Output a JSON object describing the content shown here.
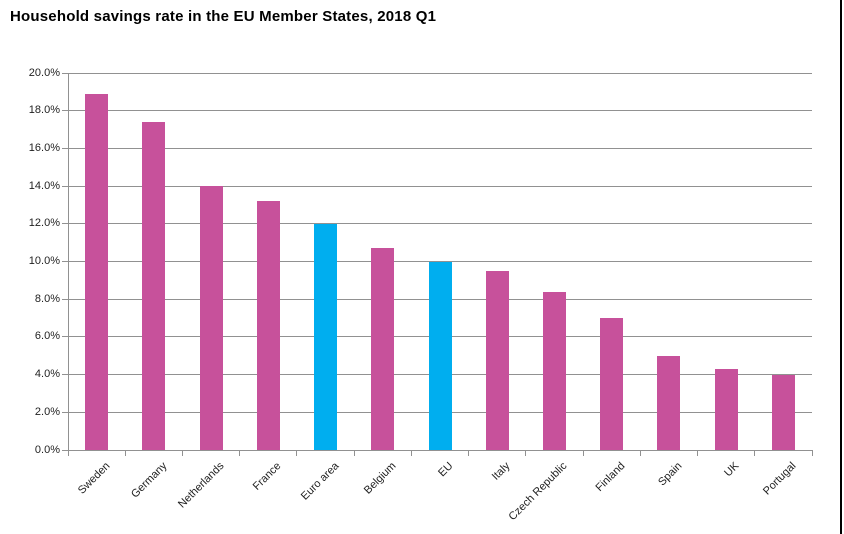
{
  "title": "Household savings rate in the EU Member States, 2018 Q1",
  "chart_data": {
    "type": "bar",
    "title": "Household savings rate in the EU Member States, 2018 Q1",
    "categories": [
      "Sweden",
      "Germany",
      "Netherlands",
      "France",
      "Euro area",
      "Belgium",
      "EU",
      "Italy",
      "Czech Republic",
      "Finland",
      "Spain",
      "UK",
      "Portugal"
    ],
    "values": [
      18.9,
      17.4,
      14.0,
      13.2,
      12.0,
      10.7,
      10.0,
      9.5,
      8.4,
      7.0,
      5.0,
      4.3,
      4.0
    ],
    "colors": [
      "#C7519B",
      "#C7519B",
      "#C7519B",
      "#C7519B",
      "#00AEEF",
      "#C7519B",
      "#00AEEF",
      "#C7519B",
      "#C7519B",
      "#C7519B",
      "#C7519B",
      "#C7519B",
      "#C7519B"
    ],
    "default_bar_color": "#C7519B",
    "highlight_bar_color": "#00AEEF",
    "highlighted_categories": [
      "Euro area",
      "EU"
    ],
    "xlabel": "",
    "ylabel": "",
    "ylim": [
      0,
      20
    ],
    "y_tick_step": 2,
    "y_tick_labels": [
      "0.0%",
      "2.0%",
      "4.0%",
      "6.0%",
      "8.0%",
      "10.0%",
      "12.0%",
      "14.0%",
      "16.0%",
      "18.0%",
      "20.0%"
    ],
    "grid": "horizontal",
    "grid_color": "#919191",
    "axis_color": "#919191",
    "legend_position": "none"
  }
}
